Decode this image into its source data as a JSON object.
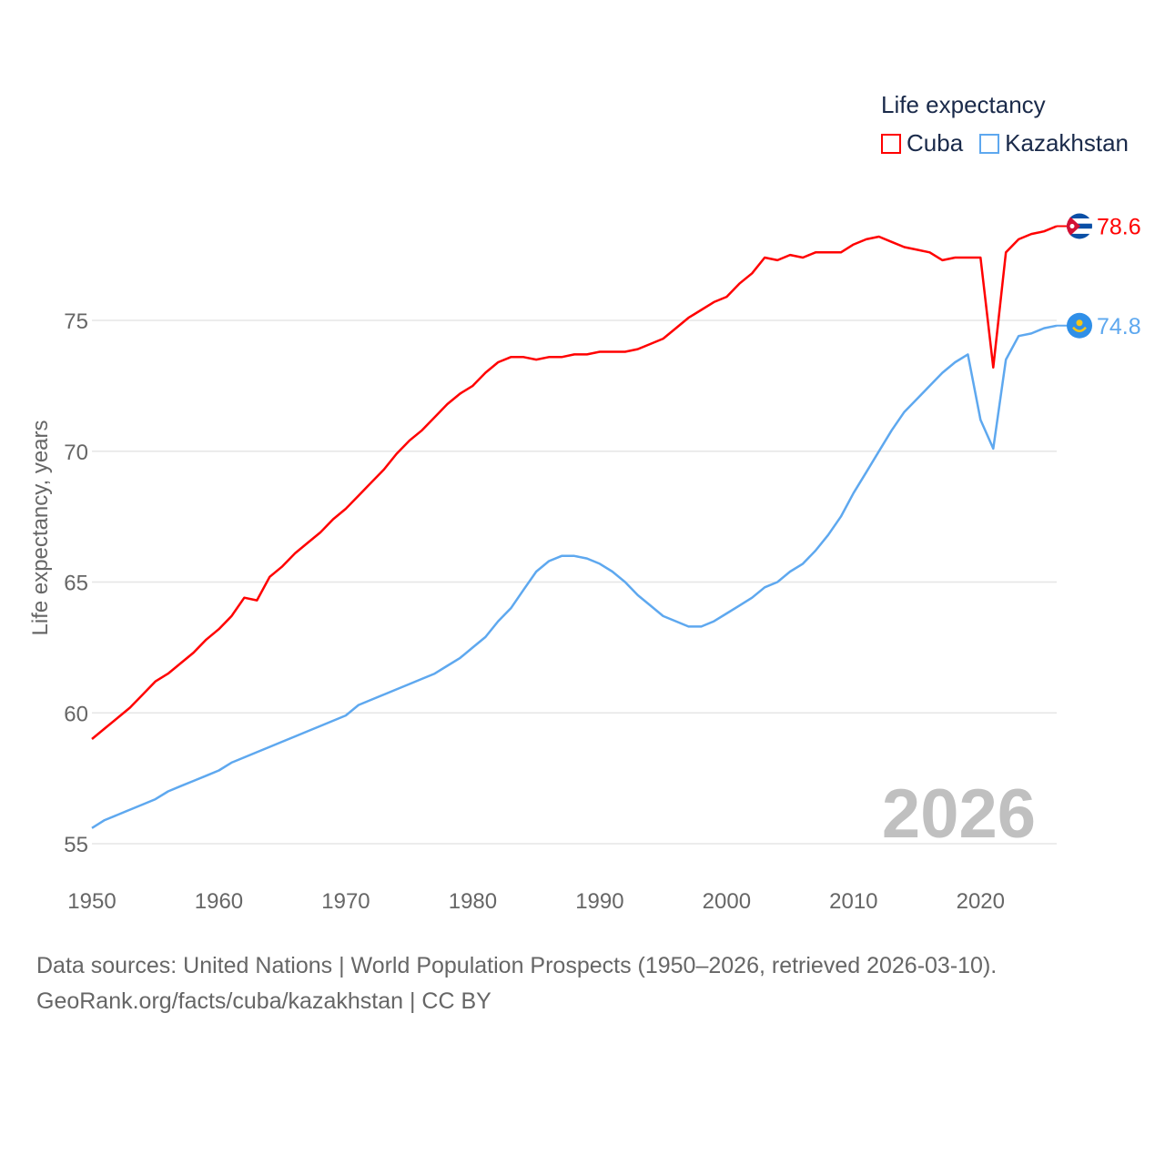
{
  "chart_data": {
    "type": "line",
    "title": "",
    "legend_title": "Life expectancy",
    "legend_placement": "top-right",
    "ylabel": "Life expectancy, years",
    "xlabel": "",
    "xlim": [
      1950,
      2026
    ],
    "ylim": [
      55,
      80
    ],
    "x_ticks": [
      "1950",
      "1960",
      "1970",
      "1980",
      "1990",
      "2000",
      "2010",
      "2020"
    ],
    "y_ticks": [
      "55",
      "60",
      "65",
      "70",
      "75"
    ],
    "grid": true,
    "year_watermark": "2026",
    "x_start": 1950,
    "series": [
      {
        "name": "Cuba",
        "color": "#ff0000",
        "end_label": "78.6",
        "values": [
          59.0,
          59.4,
          59.8,
          60.2,
          60.7,
          61.2,
          61.5,
          61.9,
          62.3,
          62.8,
          63.2,
          63.7,
          64.4,
          64.3,
          65.2,
          65.6,
          66.1,
          66.5,
          66.9,
          67.4,
          67.8,
          68.3,
          68.8,
          69.3,
          69.9,
          70.4,
          70.8,
          71.3,
          71.8,
          72.2,
          72.5,
          73.0,
          73.4,
          73.6,
          73.6,
          73.5,
          73.6,
          73.6,
          73.7,
          73.7,
          73.8,
          73.8,
          73.8,
          73.9,
          74.1,
          74.3,
          74.7,
          75.1,
          75.4,
          75.7,
          75.9,
          76.4,
          76.8,
          77.4,
          77.3,
          77.5,
          77.4,
          77.6,
          77.6,
          77.6,
          77.9,
          78.1,
          78.2,
          78.0,
          77.8,
          77.7,
          77.6,
          77.3,
          77.4,
          77.4,
          77.4,
          73.2,
          77.6,
          78.1,
          78.3,
          78.4,
          78.6
        ]
      },
      {
        "name": "Kazakhstan",
        "color": "#5ea8ef",
        "end_label": "74.8",
        "values": [
          55.6,
          55.9,
          56.1,
          56.3,
          56.5,
          56.7,
          57.0,
          57.2,
          57.4,
          57.6,
          57.8,
          58.1,
          58.3,
          58.5,
          58.7,
          58.9,
          59.1,
          59.3,
          59.5,
          59.7,
          59.9,
          60.3,
          60.5,
          60.7,
          60.9,
          61.1,
          61.3,
          61.5,
          61.8,
          62.1,
          62.5,
          62.9,
          63.5,
          64.0,
          64.7,
          65.4,
          65.8,
          66.0,
          66.0,
          65.9,
          65.7,
          65.4,
          65.0,
          64.5,
          64.1,
          63.7,
          63.5,
          63.3,
          63.3,
          63.5,
          63.8,
          64.1,
          64.4,
          64.8,
          65.0,
          65.4,
          65.7,
          66.2,
          66.8,
          67.5,
          68.4,
          69.2,
          70.0,
          70.8,
          71.5,
          72.0,
          72.5,
          73.0,
          73.4,
          73.7,
          71.2,
          70.1,
          73.5,
          74.4,
          74.5,
          74.7,
          74.8
        ]
      }
    ]
  },
  "footer": {
    "line1": "Data sources: United Nations | World Population Prospects (1950–2026, retrieved 2026-03-10).",
    "line2": "GeoRank.org/facts/cuba/kazakhstan | CC BY"
  }
}
